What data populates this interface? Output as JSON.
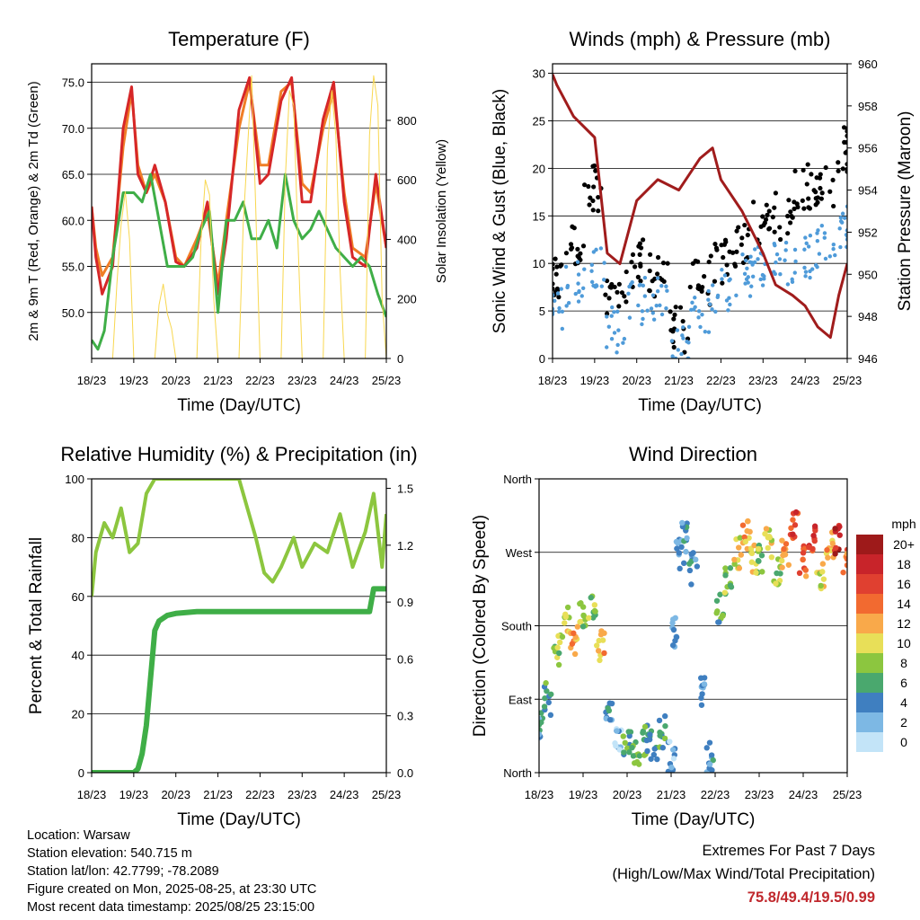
{
  "chart_data": [
    {
      "id": "temperature",
      "type": "line",
      "title": "Temperature (F)",
      "xlabel": "Time (Day/UTC)",
      "ylabel": "2m & 9m T (Red, Orange) & 2m Td (Green)",
      "y2label": "Solar Insolation (Yellow)",
      "x_ticks": [
        "18/23",
        "19/23",
        "20/23",
        "21/23",
        "22/23",
        "23/23",
        "24/23",
        "25/23"
      ],
      "ylim": [
        45.0,
        77.0
      ],
      "y_ticks": [
        "50.0",
        "55.0",
        "60.0",
        "65.0",
        "70.0",
        "75.0"
      ],
      "y2lim": [
        0,
        990
      ],
      "y2_ticks": [
        "0",
        "200",
        "400",
        "600",
        "800"
      ],
      "grid": true,
      "series": [
        {
          "role": "9m T",
          "color": "#f07e26",
          "x": [
            0,
            0.1,
            0.25,
            0.5,
            0.75,
            0.95,
            1.1,
            1.3,
            1.5,
            1.75,
            2.0,
            2.2,
            2.5,
            2.75,
            3.0,
            3.2,
            3.5,
            3.75,
            4.0,
            4.2,
            4.5,
            4.75,
            5.0,
            5.2,
            5.5,
            5.75,
            6.0,
            6.2,
            6.5,
            6.75,
            7.0
          ],
          "y": [
            61.5,
            57,
            54,
            56,
            68,
            74,
            66,
            63,
            65,
            62,
            56,
            55,
            58,
            61,
            53,
            60,
            70,
            75,
            66,
            66,
            74,
            75,
            64,
            63,
            70,
            74,
            63,
            57,
            56,
            64,
            57
          ]
        },
        {
          "role": "2m T",
          "color": "#d62728",
          "x": [
            0,
            0.1,
            0.25,
            0.5,
            0.75,
            0.95,
            1.1,
            1.3,
            1.5,
            1.75,
            2.0,
            2.2,
            2.5,
            2.75,
            3.0,
            3.2,
            3.5,
            3.75,
            4.0,
            4.2,
            4.5,
            4.75,
            5.0,
            5.2,
            5.5,
            5.75,
            6.0,
            6.2,
            6.5,
            6.75,
            7.0
          ],
          "y": [
            61.5,
            56,
            52,
            55,
            70,
            74.5,
            65,
            63,
            66,
            62,
            55.5,
            55,
            57,
            62,
            52,
            58,
            72,
            75.5,
            64,
            65,
            73,
            75.5,
            62,
            62,
            71,
            75,
            62,
            56,
            55,
            65,
            57
          ]
        },
        {
          "role": "2m Td",
          "color": "#3fae47",
          "x": [
            0,
            0.15,
            0.3,
            0.5,
            0.75,
            1.0,
            1.2,
            1.4,
            1.6,
            1.8,
            2.0,
            2.2,
            2.4,
            2.6,
            2.8,
            3.0,
            3.2,
            3.4,
            3.6,
            3.8,
            4.0,
            4.2,
            4.4,
            4.6,
            4.8,
            5.0,
            5.2,
            5.4,
            5.6,
            5.8,
            6.0,
            6.2,
            6.4,
            6.6,
            6.8,
            7.0
          ],
          "y": [
            47,
            46,
            48,
            56,
            63,
            63,
            62,
            65,
            60,
            55,
            55,
            55,
            56,
            59,
            61,
            50,
            60,
            60,
            62,
            58,
            58,
            60,
            57,
            65,
            60,
            58,
            59,
            61,
            59,
            57,
            56,
            55,
            56,
            55,
            52,
            49.5
          ]
        },
        {
          "role": "Solar Insolation",
          "color": "#f8d74f",
          "axis": "y2",
          "x": [
            0,
            0.5,
            0.6,
            0.7,
            0.8,
            0.9,
            1.0,
            1.5,
            1.6,
            1.7,
            1.8,
            1.9,
            2.0,
            2.5,
            2.6,
            2.7,
            2.8,
            2.9,
            3.0,
            3.5,
            3.6,
            3.7,
            3.8,
            3.9,
            4.0,
            4.5,
            4.6,
            4.7,
            4.8,
            4.9,
            5.0,
            5.5,
            5.6,
            5.7,
            5.8,
            5.9,
            6.0,
            6.5,
            6.6,
            6.7,
            6.8,
            6.9,
            7.0
          ],
          "y": [
            0,
            0,
            250,
            450,
            560,
            400,
            0,
            0,
            180,
            250,
            150,
            100,
            0,
            0,
            400,
            600,
            550,
            200,
            0,
            0,
            450,
            700,
            950,
            500,
            0,
            0,
            600,
            900,
            850,
            400,
            0,
            0,
            700,
            900,
            750,
            300,
            0,
            0,
            750,
            950,
            850,
            200,
            0
          ]
        }
      ]
    },
    {
      "id": "winds",
      "type": "scatter",
      "title": "Winds (mph) & Pressure (mb)",
      "xlabel": "Time (Day/UTC)",
      "ylabel": "Sonic Wind & Gust (Blue, Black)",
      "y2label": "Station Pressure (Maroon)",
      "x_ticks": [
        "18/23",
        "19/23",
        "20/23",
        "21/23",
        "22/23",
        "23/23",
        "24/23",
        "25/23"
      ],
      "ylim": [
        0,
        31
      ],
      "y_ticks": [
        "0",
        "5",
        "10",
        "15",
        "20",
        "25",
        "30"
      ],
      "y2lim": [
        946,
        960
      ],
      "y2_ticks": [
        "946",
        "948",
        "950",
        "952",
        "954",
        "956",
        "958",
        "960"
      ],
      "grid": true,
      "series": [
        {
          "role": "Gust",
          "color": "#000000",
          "x": [
            0,
            0.5,
            1.0,
            1.5,
            2.0,
            2.5,
            3.0,
            3.5,
            4.0,
            4.5,
            5.0,
            5.5,
            6.0,
            6.5,
            7.0
          ],
          "y": [
            8,
            12,
            18,
            6,
            10,
            9,
            3,
            8,
            10,
            12,
            14,
            15,
            18,
            18,
            22
          ]
        },
        {
          "role": "Sonic Wind",
          "color": "#4f9bd9",
          "x": [
            0,
            0.5,
            1.0,
            1.5,
            2.0,
            2.5,
            3.0,
            3.5,
            4.0,
            4.5,
            5.0,
            5.5,
            6.0,
            6.5,
            7.0
          ],
          "y": [
            5,
            8,
            10,
            3,
            6,
            6,
            1,
            5,
            7,
            9,
            10,
            10,
            11,
            12,
            14
          ]
        },
        {
          "role": "Station Pressure",
          "color": "#a01c1c",
          "axis": "y2",
          "x": [
            0,
            0.1,
            0.5,
            1.0,
            1.3,
            1.6,
            2.0,
            2.5,
            3.0,
            3.5,
            3.8,
            4.0,
            4.5,
            5.0,
            5.3,
            5.7,
            6.0,
            6.3,
            6.6,
            6.8,
            7.0
          ],
          "y": [
            959.5,
            959,
            957.5,
            956.5,
            951,
            950.5,
            953.5,
            954.5,
            954,
            955.5,
            956,
            954.5,
            953,
            951,
            949.5,
            949,
            948.5,
            947.5,
            947,
            949,
            950.5
          ]
        }
      ]
    },
    {
      "id": "humidity",
      "type": "line",
      "title": "Relative Humidity (%) & Precipitation (in)",
      "xlabel": "Time (Day/UTC)",
      "ylabel": "Percent & Total Rainfall",
      "x_ticks": [
        "18/23",
        "19/23",
        "20/23",
        "21/23",
        "22/23",
        "23/23",
        "24/23",
        "25/23"
      ],
      "ylim": [
        0,
        100
      ],
      "y_ticks": [
        "0",
        "20",
        "40",
        "60",
        "80",
        "100"
      ],
      "y2lim": [
        0.0,
        1.55
      ],
      "y2_ticks": [
        "0.0",
        "0.3",
        "0.6",
        "0.9",
        "1.2",
        "1.5"
      ],
      "grid": true,
      "series": [
        {
          "role": "Relative Humidity",
          "color": "#8cc63f",
          "x": [
            0,
            0.1,
            0.3,
            0.5,
            0.7,
            0.9,
            1.1,
            1.3,
            1.5,
            1.7,
            1.9,
            2.1,
            2.5,
            3.0,
            3.5,
            3.9,
            4.1,
            4.3,
            4.5,
            4.8,
            5.0,
            5.3,
            5.6,
            5.9,
            6.2,
            6.5,
            6.7,
            6.9,
            7.0
          ],
          "y": [
            60,
            75,
            85,
            80,
            90,
            75,
            78,
            95,
            100,
            100,
            100,
            100,
            100,
            100,
            100,
            80,
            68,
            65,
            70,
            80,
            70,
            78,
            75,
            88,
            70,
            82,
            95,
            70,
            88
          ]
        },
        {
          "role": "Total Precipitation",
          "color": "#3fae47",
          "axis": "y2",
          "x": [
            0,
            0.5,
            1.0,
            1.1,
            1.2,
            1.3,
            1.4,
            1.5,
            1.6,
            1.8,
            2.0,
            2.5,
            3.0,
            4.0,
            5.0,
            6.0,
            6.6,
            6.7,
            7.0
          ],
          "y": [
            0,
            0,
            0,
            0.02,
            0.1,
            0.25,
            0.5,
            0.75,
            0.8,
            0.83,
            0.84,
            0.85,
            0.85,
            0.85,
            0.85,
            0.85,
            0.85,
            0.97,
            0.97
          ]
        }
      ]
    },
    {
      "id": "direction",
      "type": "scatter",
      "title": "Wind Direction",
      "xlabel": "Time (Day/UTC)",
      "ylabel": "Direction (Colored By Speed)",
      "x_ticks": [
        "18/23",
        "19/23",
        "20/23",
        "21/23",
        "22/23",
        "23/23",
        "24/23",
        "25/23"
      ],
      "ylim": [
        0,
        360
      ],
      "y_ticks": [
        "North",
        "East",
        "South",
        "West",
        "North"
      ],
      "grid": true,
      "legend": {
        "title": "mph",
        "position": "right",
        "labels": [
          "20+",
          "18",
          "16",
          "14",
          "12",
          "10",
          "8",
          "6",
          "4",
          "2",
          "0"
        ],
        "colors": [
          "#9e1a1a",
          "#c8242a",
          "#e04030",
          "#f26a30",
          "#f9a94a",
          "#e8df58",
          "#8cc63f",
          "#4aa86e",
          "#3f7fc0",
          "#7db8e4",
          "#c3e4f8"
        ]
      },
      "series": [
        {
          "role": "Direction",
          "x": [
            0,
            0.2,
            0.4,
            0.6,
            0.8,
            1.0,
            1.2,
            1.4,
            1.6,
            1.8,
            2.0,
            2.2,
            2.4,
            2.6,
            2.8,
            3.0,
            3.1,
            3.2,
            3.3,
            3.5,
            3.7,
            3.9,
            4.1,
            4.3,
            4.5,
            4.7,
            4.9,
            5.0,
            5.2,
            5.4,
            5.6,
            5.8,
            6.0,
            6.2,
            6.4,
            6.6,
            6.8,
            7.0
          ],
          "y": [
            55,
            90,
            150,
            185,
            165,
            190,
            200,
            155,
            70,
            35,
            40,
            30,
            40,
            35,
            50,
            20,
            170,
            270,
            290,
            250,
            100,
            20,
            200,
            235,
            270,
            290,
            260,
            265,
            280,
            250,
            265,
            300,
            260,
            285,
            245,
            275,
            285,
            260
          ],
          "speed": [
            4,
            6,
            8,
            10,
            12,
            8,
            8,
            12,
            4,
            2,
            6,
            7,
            6,
            5,
            6,
            2,
            3,
            3,
            4,
            4,
            3,
            4,
            6,
            8,
            10,
            12,
            10,
            8,
            10,
            8,
            12,
            16,
            14,
            16,
            10,
            12,
            18,
            14
          ]
        }
      ]
    }
  ],
  "info": {
    "location": "Location: Warsaw",
    "elevation": "Station elevation: 540.715 m",
    "latlon": "Station lat/lon: 42.7799; -78.2089",
    "created": "Figure created on Mon, 2025-08-25, at 23:30 UTC",
    "recent": "Most recent data timestamp: 2025/08/25 23:15:00"
  },
  "extremes": {
    "title": "Extremes For Past 7 Days",
    "subtitle": "(High/Low/Max Wind/Total Precipitation)",
    "values": "75.8/49.4/19.5/0.99"
  }
}
